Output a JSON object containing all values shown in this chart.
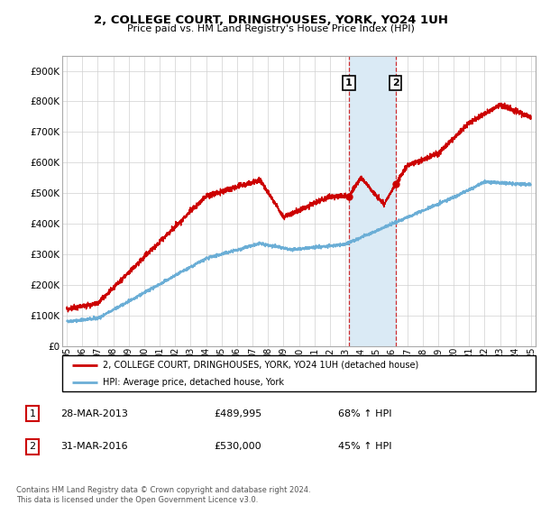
{
  "title": "2, COLLEGE COURT, DRINGHOUSES, YORK, YO24 1UH",
  "subtitle": "Price paid vs. HM Land Registry's House Price Index (HPI)",
  "legend_line1": "2, COLLEGE COURT, DRINGHOUSES, YORK, YO24 1UH (detached house)",
  "legend_line2": "HPI: Average price, detached house, York",
  "transaction1_date": "28-MAR-2013",
  "transaction1_price": "£489,995",
  "transaction1_hpi": "68% ↑ HPI",
  "transaction2_date": "31-MAR-2016",
  "transaction2_price": "£530,000",
  "transaction2_hpi": "45% ↑ HPI",
  "footer": "Contains HM Land Registry data © Crown copyright and database right 2024.\nThis data is licensed under the Open Government Licence v3.0.",
  "hpi_color": "#6baed6",
  "price_color": "#cc0000",
  "highlight_color": "#daeaf5",
  "transaction1_year": 2013.23,
  "transaction2_year": 2016.25,
  "ylim_max": 950000,
  "yticks": [
    0,
    100000,
    200000,
    300000,
    400000,
    500000,
    600000,
    700000,
    800000,
    900000
  ],
  "xlim_start": 1994.7,
  "xlim_end": 2025.3,
  "xtick_years": [
    "95",
    "96",
    "97",
    "98",
    "99",
    "00",
    "01",
    "02",
    "03",
    "04",
    "05",
    "06",
    "07",
    "08",
    "09",
    "10",
    "11",
    "12",
    "13",
    "14",
    "15",
    "16",
    "17",
    "18",
    "19",
    "20",
    "21",
    "22",
    "23",
    "24",
    "25"
  ]
}
